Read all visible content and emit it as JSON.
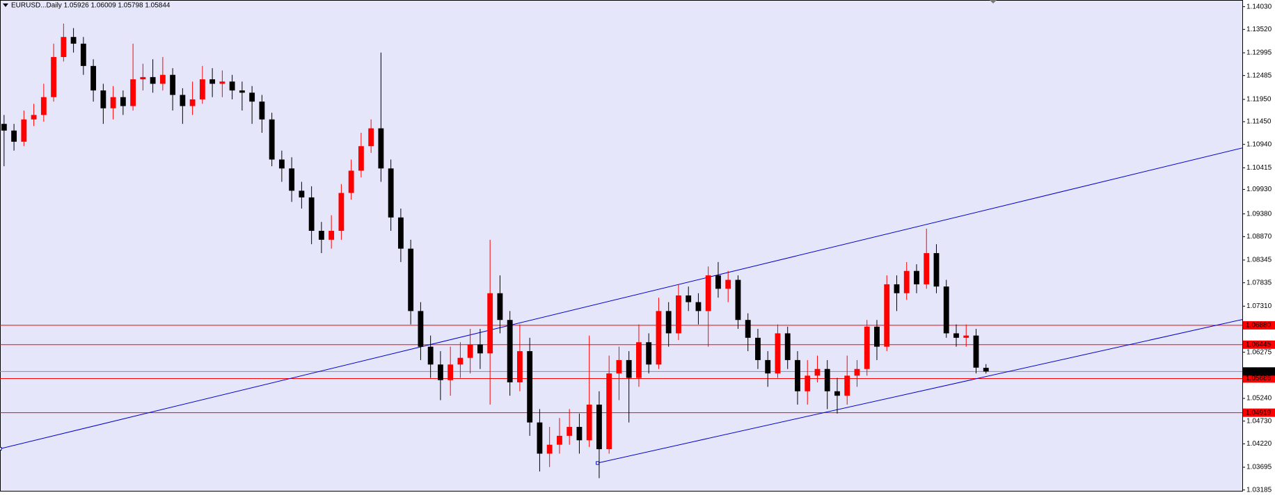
{
  "chart_data": {
    "type": "candlestick",
    "title": "EURUSD...Daily  1.05926 1.06009 1.05798 1.05844",
    "up_color": "#ff0000",
    "down_color": "#000000",
    "background": "#e6e6fa",
    "xlim": [
      -0.41,
      124.84
    ],
    "ylim": [
      1.0315,
      1.1418
    ],
    "yticks": [
      {
        "value": 1.1403,
        "label": "1.14030"
      },
      {
        "value": 1.1352,
        "label": "1.13520"
      },
      1.12995,
      1.12485,
      {
        "value": 1.1195,
        "label": "1.11950"
      },
      {
        "value": 1.1145,
        "label": "1.11450"
      },
      {
        "value": 1.1094,
        "label": "1.10940"
      },
      1.10415,
      {
        "value": 1.0993,
        "label": "1.09930"
      },
      {
        "value": 1.0938,
        "label": "1.09380"
      },
      {
        "value": 1.0887,
        "label": "1.08870"
      },
      1.08345,
      1.07835,
      {
        "value": 1.0731,
        "label": "1.07310"
      },
      1.06275,
      {
        "value": 1.0524,
        "label": "1.05240"
      },
      {
        "value": 1.0473,
        "label": "1.04730"
      },
      {
        "value": 1.0422,
        "label": "1.04220"
      },
      1.03695,
      1.03185
    ],
    "open": [
      1.114,
      1.1125,
      1.11,
      1.115,
      1.116,
      1.12,
      1.129,
      1.1335,
      1.132,
      1.127,
      1.1215,
      1.1175,
      1.12,
      1.118,
      1.124,
      1.1245,
      1.123,
      1.125,
      1.1205,
      1.118,
      1.1195,
      1.124,
      1.123,
      1.1235,
      1.1215,
      1.121,
      1.119,
      1.115,
      1.106,
      1.104,
      1.099,
      1.0975,
      1.09,
      1.088,
      1.09,
      1.0985,
      1.1035,
      1.109,
      1.113,
      1.104,
      1.093,
      1.086,
      1.072,
      1.064,
      1.06,
      1.0565,
      1.06,
      1.0615,
      1.0645,
      1.0625,
      1.076,
      1.07,
      1.056,
      1.063,
      1.047,
      1.04,
      1.042,
      1.044,
      1.046,
      1.043,
      1.051,
      1.041,
      1.058,
      1.061,
      1.057,
      1.065,
      1.06,
      1.072,
      1.067,
      1.0755,
      1.074,
      1.072,
      1.08,
      1.077,
      1.079,
      1.07,
      1.066,
      1.061,
      1.058,
      1.067,
      1.061,
      1.054,
      1.0575,
      1.059,
      1.054,
      1.053,
      1.0575,
      1.059,
      1.0685,
      1.064,
      1.078,
      1.076,
      1.081,
      1.078,
      1.085,
      1.0775,
      1.067,
      1.066,
      1.0665,
      1.05926
    ],
    "high": [
      1.116,
      1.114,
      1.117,
      1.1185,
      1.123,
      1.132,
      1.1365,
      1.1355,
      1.1335,
      1.1285,
      1.123,
      1.1225,
      1.1215,
      1.132,
      1.1275,
      1.1285,
      1.129,
      1.1265,
      1.122,
      1.1235,
      1.127,
      1.1265,
      1.126,
      1.125,
      1.1235,
      1.1225,
      1.1205,
      1.1165,
      1.108,
      1.1065,
      1.101,
      1.1,
      1.092,
      1.0935,
      1.1005,
      1.106,
      1.112,
      1.115,
      1.13,
      1.106,
      1.095,
      1.088,
      1.074,
      1.0665,
      1.063,
      1.064,
      1.065,
      1.068,
      1.068,
      1.088,
      1.08,
      1.072,
      1.069,
      1.066,
      1.05,
      1.046,
      1.048,
      1.05,
      1.049,
      1.0665,
      1.054,
      1.062,
      1.064,
      1.063,
      1.069,
      1.067,
      1.075,
      1.074,
      1.078,
      1.0775,
      1.076,
      1.082,
      1.083,
      1.081,
      1.08,
      1.0715,
      1.068,
      1.063,
      1.069,
      1.0685,
      1.063,
      1.061,
      1.062,
      1.061,
      1.057,
      1.062,
      1.061,
      1.07,
      1.07,
      1.08,
      1.08,
      1.083,
      1.0825,
      1.0905,
      1.087,
      1.079,
      1.069,
      1.069,
      1.068,
      1.06009
    ],
    "low": [
      1.1045,
      1.108,
      1.109,
      1.1135,
      1.1145,
      1.119,
      1.128,
      1.13,
      1.125,
      1.119,
      1.114,
      1.115,
      1.116,
      1.117,
      1.1215,
      1.121,
      1.1215,
      1.117,
      1.114,
      1.116,
      1.1185,
      1.12,
      1.12,
      1.1195,
      1.117,
      1.114,
      1.112,
      1.1045,
      1.101,
      1.0965,
      1.095,
      1.087,
      1.085,
      1.086,
      1.088,
      1.097,
      1.102,
      1.1075,
      1.101,
      1.09,
      1.083,
      1.069,
      1.061,
      1.057,
      1.052,
      1.053,
      1.057,
      1.058,
      1.059,
      1.051,
      1.067,
      1.053,
      1.054,
      1.044,
      1.036,
      1.037,
      1.04,
      1.042,
      1.04,
      1.0415,
      1.0345,
      1.04,
      1.052,
      1.047,
      1.055,
      1.058,
      1.059,
      1.064,
      1.0655,
      1.072,
      1.069,
      1.064,
      1.075,
      1.074,
      1.068,
      1.063,
      1.059,
      1.055,
      1.057,
      1.059,
      1.051,
      1.051,
      1.056,
      1.05,
      1.049,
      1.051,
      1.055,
      1.0575,
      1.061,
      1.063,
      1.072,
      1.0745,
      1.076,
      1.077,
      1.076,
      1.066,
      1.064,
      1.064,
      1.058,
      1.05798
    ],
    "close": [
      1.1125,
      1.11,
      1.115,
      1.116,
      1.12,
      1.129,
      1.1335,
      1.132,
      1.127,
      1.1215,
      1.1175,
      1.12,
      1.118,
      1.124,
      1.1245,
      1.123,
      1.125,
      1.1205,
      1.118,
      1.1195,
      1.124,
      1.123,
      1.1235,
      1.1215,
      1.121,
      1.119,
      1.115,
      1.106,
      1.104,
      1.099,
      1.0975,
      1.09,
      1.088,
      1.09,
      1.0985,
      1.1035,
      1.109,
      1.113,
      1.104,
      1.093,
      1.086,
      1.072,
      1.064,
      1.06,
      1.0565,
      1.06,
      1.0615,
      1.0645,
      1.0625,
      1.076,
      1.07,
      1.056,
      1.063,
      1.047,
      1.04,
      1.042,
      1.044,
      1.046,
      1.043,
      1.051,
      1.041,
      1.058,
      1.061,
      1.057,
      1.065,
      1.06,
      1.072,
      1.067,
      1.0755,
      1.074,
      1.072,
      1.08,
      1.077,
      1.079,
      1.07,
      1.066,
      1.061,
      1.058,
      1.067,
      1.061,
      1.054,
      1.0575,
      1.059,
      1.054,
      1.053,
      1.0575,
      1.059,
      1.0685,
      1.064,
      1.078,
      1.076,
      1.081,
      1.078,
      1.085,
      1.0775,
      1.067,
      1.066,
      1.0665,
      1.0593,
      1.05844
    ],
    "hlines": [
      {
        "value": 1.0688,
        "label": "1.06880",
        "color": "#ff0000"
      },
      {
        "value": 1.06445,
        "label": "1.06445",
        "color": "#ff0000"
      },
      {
        "value": 1.05686,
        "label": "1.05686",
        "color": "#ff0000"
      },
      {
        "value": 1.04919,
        "label": "1.04919",
        "color": "#ff0000"
      },
      {
        "value": 1.05844,
        "label": "1.05844",
        "color": "#000000"
      }
    ],
    "trendlines": [
      {
        "x": [
          -0.41,
          124.84
        ],
        "y": [
          1.0411,
          1.1086
        ],
        "color": "#0000cc"
      },
      {
        "x": [
          59.84,
          124.84
        ],
        "y": [
          1.0379,
          1.0701
        ],
        "color": "#0000cc"
      }
    ]
  }
}
